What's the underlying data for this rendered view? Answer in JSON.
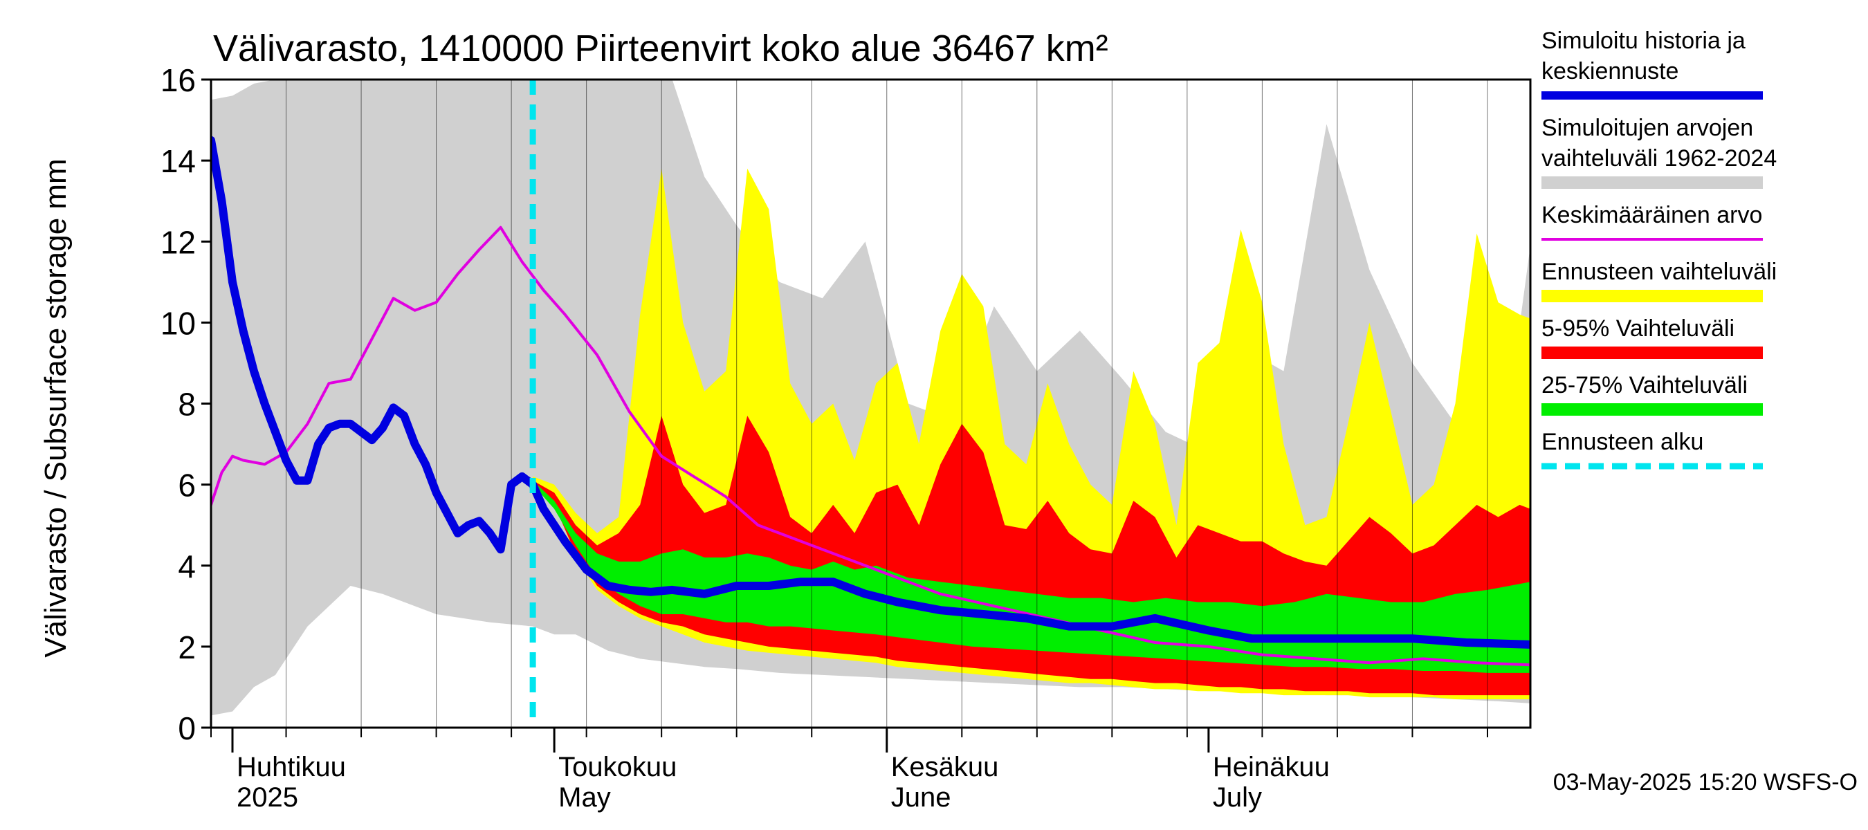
{
  "chart_data": {
    "type": "area",
    "title": "Välivarasto, 1410000 Piirteenvirt koko alue 36467 km²",
    "ylabel": "Välivarasto / Subsurface storage  mm",
    "ylim": [
      0,
      16
    ],
    "y_ticks": [
      0,
      2,
      4,
      6,
      8,
      10,
      12,
      14,
      16
    ],
    "xlim": [
      "2025-03-30",
      "2025-07-31"
    ],
    "forecast_start": "2025-04-29",
    "month_labels": [
      {
        "fi": "Huhtikuu",
        "en": "2025",
        "date": "2025-04-01"
      },
      {
        "fi": "Toukokuu",
        "en": "May",
        "date": "2025-05-01"
      },
      {
        "fi": "Kesäkuu",
        "en": "June",
        "date": "2025-06-01"
      },
      {
        "fi": "Heinäkuu",
        "en": "July",
        "date": "2025-07-01"
      }
    ],
    "footer": "03-May-2025 15:20 WSFS-O",
    "legend": [
      {
        "label": "Simuloitu historia ja keskiennuste",
        "color": "#0000e0",
        "style": "thick"
      },
      {
        "label": "Simuloitujen arvojen vaihteluväli 1962-2024",
        "color": "#d0d0d0",
        "style": "band"
      },
      {
        "label": "Keskimääräinen arvo",
        "color": "#e000e0",
        "style": "thin"
      },
      {
        "label": "Ennusteen vaihteluväli",
        "color": "#ffff00",
        "style": "band"
      },
      {
        "label": "5-95% Vaihteluväli",
        "color": "#ff0000",
        "style": "band"
      },
      {
        "label": "25-75% Vaihteluväli",
        "color": "#00ee00",
        "style": "band"
      },
      {
        "label": "Ennusteen alku",
        "color": "#00e5ee",
        "style": "dashed"
      }
    ],
    "series": [
      {
        "name": "Simuloitu historia ja keskiennuste",
        "x": [
          "2025-03-30",
          "2025-03-31",
          "2025-04-01",
          "2025-04-02",
          "2025-04-03",
          "2025-04-04",
          "2025-04-05",
          "2025-04-06",
          "2025-04-07",
          "2025-04-08",
          "2025-04-09",
          "2025-04-10",
          "2025-04-11",
          "2025-04-12",
          "2025-04-14",
          "2025-04-15",
          "2025-04-16",
          "2025-04-17",
          "2025-04-18",
          "2025-04-19",
          "2025-04-20",
          "2025-04-21",
          "2025-04-22",
          "2025-04-23",
          "2025-04-24",
          "2025-04-25",
          "2025-04-26",
          "2025-04-27",
          "2025-04-28",
          "2025-04-29",
          "2025-04-30",
          "2025-05-02",
          "2025-05-04",
          "2025-05-06",
          "2025-05-08",
          "2025-05-10",
          "2025-05-12",
          "2025-05-15",
          "2025-05-18",
          "2025-05-21",
          "2025-05-24",
          "2025-05-27",
          "2025-05-30",
          "2025-06-02",
          "2025-06-06",
          "2025-06-10",
          "2025-06-14",
          "2025-06-18",
          "2025-06-22",
          "2025-06-26",
          "2025-07-01",
          "2025-07-05",
          "2025-07-10",
          "2025-07-15",
          "2025-07-20",
          "2025-07-25",
          "2025-07-31"
        ],
        "values": [
          14.5,
          13.0,
          11.0,
          9.8,
          8.8,
          8.0,
          7.3,
          6.6,
          6.1,
          6.1,
          7.0,
          7.4,
          7.5,
          7.5,
          7.1,
          7.4,
          7.9,
          7.7,
          7.0,
          6.5,
          5.8,
          5.3,
          4.8,
          5.0,
          5.1,
          4.8,
          4.4,
          6.0,
          6.2,
          6.0,
          5.4,
          4.6,
          3.9,
          3.5,
          3.4,
          3.35,
          3.4,
          3.3,
          3.5,
          3.5,
          3.6,
          3.6,
          3.3,
          3.1,
          2.9,
          2.8,
          2.7,
          2.5,
          2.5,
          2.7,
          2.4,
          2.2,
          2.2,
          2.2,
          2.2,
          2.1,
          2.05
        ]
      },
      {
        "name": "Keskimääräinen arvo",
        "x": [
          "2025-03-30",
          "2025-03-31",
          "2025-04-01",
          "2025-04-02",
          "2025-04-04",
          "2025-04-06",
          "2025-04-08",
          "2025-04-10",
          "2025-04-12",
          "2025-04-14",
          "2025-04-16",
          "2025-04-18",
          "2025-04-20",
          "2025-04-22",
          "2025-04-24",
          "2025-04-26",
          "2025-04-28",
          "2025-04-30",
          "2025-05-02",
          "2025-05-05",
          "2025-05-08",
          "2025-05-11",
          "2025-05-14",
          "2025-05-17",
          "2025-05-20",
          "2025-05-24",
          "2025-05-28",
          "2025-06-01",
          "2025-06-06",
          "2025-06-11",
          "2025-06-16",
          "2025-06-21",
          "2025-06-26",
          "2025-07-01",
          "2025-07-06",
          "2025-07-11",
          "2025-07-16",
          "2025-07-21",
          "2025-07-26",
          "2025-07-31"
        ],
        "values": [
          5.5,
          6.3,
          6.7,
          6.6,
          6.5,
          6.8,
          7.5,
          8.5,
          8.6,
          9.6,
          10.6,
          10.3,
          10.5,
          11.2,
          11.8,
          12.35,
          11.5,
          10.8,
          10.2,
          9.2,
          7.8,
          6.7,
          6.2,
          5.7,
          5.0,
          4.6,
          4.2,
          3.8,
          3.3,
          3.0,
          2.7,
          2.4,
          2.1,
          2.0,
          1.8,
          1.7,
          1.6,
          1.7,
          1.6,
          1.55
        ]
      }
    ],
    "bands": [
      {
        "name": "Simuloitujen arvojen vaihteluväli 1962-2024",
        "x": [
          "2025-03-30",
          "2025-04-01",
          "2025-04-03",
          "2025-04-05",
          "2025-04-08",
          "2025-04-12",
          "2025-04-15",
          "2025-04-20",
          "2025-04-25",
          "2025-04-29",
          "2025-05-01",
          "2025-05-03",
          "2025-05-06",
          "2025-05-09",
          "2025-05-12",
          "2025-05-15",
          "2025-05-18",
          "2025-05-22",
          "2025-05-26",
          "2025-05-30",
          "2025-06-03",
          "2025-06-07",
          "2025-06-11",
          "2025-06-15",
          "2025-06-19",
          "2025-06-23",
          "2025-06-27",
          "2025-07-01",
          "2025-07-04",
          "2025-07-08",
          "2025-07-12",
          "2025-07-16",
          "2025-07-20",
          "2025-07-24",
          "2025-07-28",
          "2025-07-31"
        ],
        "low": [
          0.3,
          0.4,
          1.0,
          1.3,
          2.5,
          3.5,
          3.3,
          2.8,
          2.6,
          2.5,
          2.3,
          2.3,
          1.9,
          1.7,
          1.6,
          1.5,
          1.45,
          1.35,
          1.3,
          1.25,
          1.2,
          1.15,
          1.1,
          1.05,
          1.0,
          1.0,
          0.95,
          0.9,
          0.9,
          0.85,
          0.8,
          0.8,
          0.75,
          0.7,
          0.65,
          0.6
        ],
        "high": [
          15.5,
          15.6,
          15.9,
          16,
          16,
          16,
          16,
          16,
          16,
          16,
          16,
          16,
          16,
          16,
          16,
          13.6,
          12.4,
          11.0,
          10.6,
          12.0,
          8.0,
          7.6,
          10.4,
          8.8,
          9.8,
          8.6,
          7.3,
          6.8,
          9.4,
          8.8,
          14.9,
          11.3,
          9.0,
          7.5,
          6.0,
          11.9
        ]
      },
      {
        "name": "Ennusteen vaihteluväli",
        "x": [
          "2025-04-29",
          "2025-05-01",
          "2025-05-03",
          "2025-05-05",
          "2025-05-07",
          "2025-05-09",
          "2025-05-11",
          "2025-05-13",
          "2025-05-15",
          "2025-05-17",
          "2025-05-19",
          "2025-05-21",
          "2025-05-23",
          "2025-05-25",
          "2025-05-27",
          "2025-05-29",
          "2025-05-31",
          "2025-06-02",
          "2025-06-04",
          "2025-06-06",
          "2025-06-08",
          "2025-06-10",
          "2025-06-12",
          "2025-06-14",
          "2025-06-16",
          "2025-06-18",
          "2025-06-20",
          "2025-06-22",
          "2025-06-24",
          "2025-06-26",
          "2025-06-28",
          "2025-06-30",
          "2025-07-02",
          "2025-07-04",
          "2025-07-06",
          "2025-07-08",
          "2025-07-10",
          "2025-07-12",
          "2025-07-14",
          "2025-07-16",
          "2025-07-18",
          "2025-07-20",
          "2025-07-22",
          "2025-07-24",
          "2025-07-26",
          "2025-07-28",
          "2025-07-30",
          "2025-07-31"
        ],
        "low": [
          6.0,
          5.6,
          4.2,
          3.4,
          3.0,
          2.7,
          2.5,
          2.3,
          2.1,
          2.0,
          1.9,
          1.85,
          1.8,
          1.75,
          1.7,
          1.65,
          1.6,
          1.5,
          1.45,
          1.4,
          1.35,
          1.3,
          1.25,
          1.2,
          1.15,
          1.1,
          1.1,
          1.05,
          1.0,
          0.95,
          0.95,
          0.9,
          0.9,
          0.85,
          0.85,
          0.8,
          0.8,
          0.8,
          0.8,
          0.75,
          0.75,
          0.75,
          0.75,
          0.7,
          0.7,
          0.7,
          0.7,
          0.7
        ],
        "high": [
          6.2,
          6.0,
          5.3,
          4.8,
          5.2,
          10.2,
          13.8,
          10.0,
          8.3,
          8.8,
          13.8,
          12.8,
          8.5,
          7.5,
          8.0,
          6.6,
          8.5,
          9.0,
          7.0,
          9.8,
          11.2,
          10.4,
          7.0,
          6.5,
          8.5,
          7.0,
          6.0,
          5.5,
          8.8,
          7.5,
          5.0,
          9.0,
          9.5,
          12.3,
          10.5,
          7.0,
          5.0,
          5.2,
          7.5,
          10.0,
          7.8,
          5.5,
          6.0,
          8.0,
          12.2,
          10.5,
          10.2,
          10.1
        ]
      },
      {
        "name": "5-95% Vaihteluväli",
        "x": [
          "2025-04-29",
          "2025-05-01",
          "2025-05-03",
          "2025-05-05",
          "2025-05-07",
          "2025-05-09",
          "2025-05-11",
          "2025-05-13",
          "2025-05-15",
          "2025-05-17",
          "2025-05-19",
          "2025-05-21",
          "2025-05-23",
          "2025-05-25",
          "2025-05-27",
          "2025-05-29",
          "2025-05-31",
          "2025-06-02",
          "2025-06-04",
          "2025-06-06",
          "2025-06-08",
          "2025-06-10",
          "2025-06-12",
          "2025-06-14",
          "2025-06-16",
          "2025-06-18",
          "2025-06-20",
          "2025-06-22",
          "2025-06-24",
          "2025-06-26",
          "2025-06-28",
          "2025-06-30",
          "2025-07-02",
          "2025-07-04",
          "2025-07-06",
          "2025-07-08",
          "2025-07-10",
          "2025-07-12",
          "2025-07-14",
          "2025-07-16",
          "2025-07-18",
          "2025-07-20",
          "2025-07-22",
          "2025-07-24",
          "2025-07-26",
          "2025-07-28",
          "2025-07-30",
          "2025-07-31"
        ],
        "low": [
          6.0,
          5.5,
          4.3,
          3.5,
          3.1,
          2.8,
          2.6,
          2.5,
          2.3,
          2.2,
          2.1,
          2.0,
          1.95,
          1.9,
          1.85,
          1.8,
          1.75,
          1.65,
          1.6,
          1.55,
          1.5,
          1.45,
          1.4,
          1.35,
          1.3,
          1.25,
          1.2,
          1.2,
          1.15,
          1.1,
          1.1,
          1.05,
          1.0,
          1.0,
          0.95,
          0.95,
          0.9,
          0.9,
          0.9,
          0.85,
          0.85,
          0.85,
          0.8,
          0.8,
          0.8,
          0.8,
          0.8,
          0.8
        ],
        "high": [
          6.1,
          5.8,
          5.0,
          4.5,
          4.8,
          5.5,
          7.7,
          6.0,
          5.3,
          5.5,
          7.7,
          6.8,
          5.2,
          4.8,
          5.5,
          4.8,
          5.8,
          6.0,
          5.0,
          6.5,
          7.5,
          6.8,
          5.0,
          4.9,
          5.6,
          4.8,
          4.4,
          4.3,
          5.6,
          5.2,
          4.2,
          5.0,
          4.8,
          4.6,
          4.6,
          4.3,
          4.1,
          4.0,
          4.6,
          5.2,
          4.8,
          4.3,
          4.5,
          5.0,
          5.5,
          5.2,
          5.5,
          5.4
        ]
      },
      {
        "name": "25-75% Vaihteluväli",
        "x": [
          "2025-04-29",
          "2025-05-01",
          "2025-05-03",
          "2025-05-05",
          "2025-05-07",
          "2025-05-09",
          "2025-05-11",
          "2025-05-13",
          "2025-05-15",
          "2025-05-17",
          "2025-05-19",
          "2025-05-21",
          "2025-05-23",
          "2025-05-25",
          "2025-05-27",
          "2025-05-29",
          "2025-05-31",
          "2025-06-03",
          "2025-06-06",
          "2025-06-09",
          "2025-06-12",
          "2025-06-15",
          "2025-06-18",
          "2025-06-21",
          "2025-06-24",
          "2025-06-27",
          "2025-06-30",
          "2025-07-03",
          "2025-07-06",
          "2025-07-09",
          "2025-07-12",
          "2025-07-15",
          "2025-07-18",
          "2025-07-21",
          "2025-07-24",
          "2025-07-27",
          "2025-07-31"
        ],
        "low": [
          6.0,
          5.4,
          4.5,
          3.7,
          3.3,
          3.0,
          2.8,
          2.8,
          2.7,
          2.6,
          2.6,
          2.5,
          2.5,
          2.45,
          2.4,
          2.35,
          2.3,
          2.2,
          2.1,
          2.0,
          1.95,
          1.9,
          1.85,
          1.8,
          1.75,
          1.7,
          1.65,
          1.6,
          1.55,
          1.5,
          1.5,
          1.45,
          1.45,
          1.4,
          1.4,
          1.35,
          1.35
        ],
        "high": [
          6.1,
          5.6,
          4.8,
          4.3,
          4.1,
          4.1,
          4.3,
          4.4,
          4.2,
          4.2,
          4.3,
          4.2,
          4.0,
          3.9,
          4.1,
          3.9,
          4.0,
          3.7,
          3.6,
          3.5,
          3.4,
          3.3,
          3.2,
          3.2,
          3.1,
          3.2,
          3.1,
          3.1,
          3.0,
          3.1,
          3.3,
          3.2,
          3.1,
          3.1,
          3.3,
          3.4,
          3.6
        ]
      }
    ]
  }
}
